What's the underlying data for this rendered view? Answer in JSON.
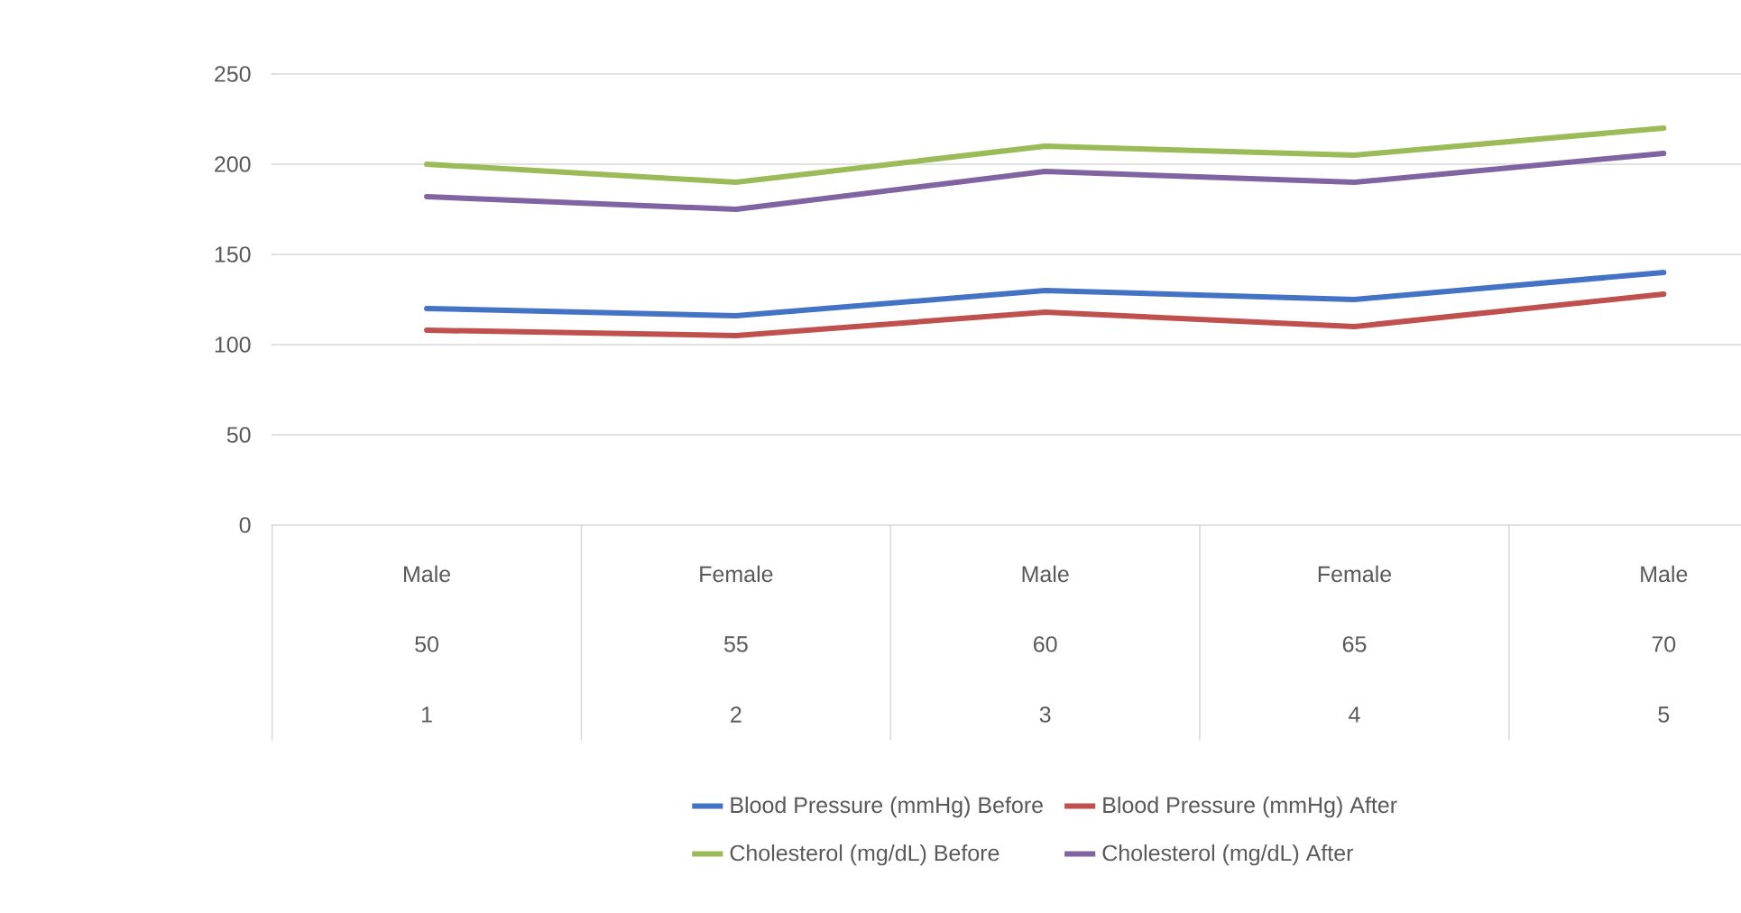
{
  "chart_data": {
    "type": "line",
    "categories": [
      "Male",
      "Female",
      "Male",
      "Female",
      "Male"
    ],
    "annotations": [
      "50",
      "55",
      "60",
      "65",
      "70",
      "1",
      "2",
      "3",
      "4",
      "5"
    ],
    "series": [
      {
        "name": "Blood Pressure (mmHg) Before",
        "color": "#4472c4",
        "values": [
          120,
          116,
          130,
          125,
          140
        ]
      },
      {
        "name": "Blood Pressure (mmHg) After",
        "color": "#c0504d",
        "values": [
          108,
          105,
          118,
          110,
          128
        ]
      },
      {
        "name": "Cholesterol (mg/dL) Before",
        "color": "#9bbb59",
        "values": [
          200,
          190,
          210,
          205,
          220
        ]
      },
      {
        "name": "Cholesterol (mg/dL) After",
        "color": "#8064a2",
        "values": [
          182,
          175,
          196,
          190,
          206
        ]
      }
    ],
    "ylim": [
      0,
      250
    ],
    "yticks": [
      0,
      50,
      100,
      150,
      200,
      250
    ],
    "grid": "y",
    "legend": "bottom",
    "marker": "none",
    "line_style": "solid"
  }
}
